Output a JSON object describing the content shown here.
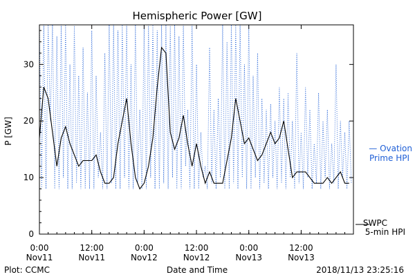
{
  "chart_data": {
    "type": "line",
    "title": "Hemispheric Power [GW]",
    "xlabel": "Date and Time",
    "ylabel": "P [GW]",
    "ylim": [
      0,
      37
    ],
    "yticks": [
      0,
      10,
      20,
      30
    ],
    "xlim": [
      "2018-11-11 00:00",
      "2018-11-13 23:59"
    ],
    "xticks": [
      {
        "time": "2018-11-11 00:00",
        "label_top": "0:00",
        "label_bottom": "Nov11"
      },
      {
        "time": "2018-11-11 12:00",
        "label_top": "12:00",
        "label_bottom": "Nov11"
      },
      {
        "time": "2018-11-12 00:00",
        "label_top": "0:00",
        "label_bottom": "Nov12"
      },
      {
        "time": "2018-11-12 12:00",
        "label_top": "12:00",
        "label_bottom": "Nov12"
      },
      {
        "time": "2018-11-13 00:00",
        "label_top": "0:00",
        "label_bottom": "Nov13"
      },
      {
        "time": "2018-11-13 12:00",
        "label_top": "12:00",
        "label_bottom": "Nov13"
      }
    ],
    "grid": false,
    "colors": {
      "swpc": "#000000",
      "ovation": "#1f5fd6"
    },
    "series": [
      {
        "name": "SWPC 5-min HPI",
        "legend_lines": [
          "SWPC",
          "5-min HPI"
        ],
        "style": "solid",
        "x": [
          "2018-11-11 00:00",
          "2018-11-11 01:00",
          "2018-11-11 02:00",
          "2018-11-11 03:00",
          "2018-11-11 04:00",
          "2018-11-11 05:00",
          "2018-11-11 06:00",
          "2018-11-11 07:00",
          "2018-11-11 08:00",
          "2018-11-11 09:00",
          "2018-11-11 10:00",
          "2018-11-11 11:00",
          "2018-11-11 12:00",
          "2018-11-11 13:00",
          "2018-11-11 14:00",
          "2018-11-11 15:00",
          "2018-11-11 16:00",
          "2018-11-11 17:00",
          "2018-11-11 18:00",
          "2018-11-11 19:00",
          "2018-11-11 20:00",
          "2018-11-11 21:00",
          "2018-11-11 22:00",
          "2018-11-11 23:00",
          "2018-11-12 00:00",
          "2018-11-12 01:00",
          "2018-11-12 02:00",
          "2018-11-12 03:00",
          "2018-11-12 04:00",
          "2018-11-12 05:00",
          "2018-11-12 06:00",
          "2018-11-12 07:00",
          "2018-11-12 08:00",
          "2018-11-12 09:00",
          "2018-11-12 10:00",
          "2018-11-12 11:00",
          "2018-11-12 12:00",
          "2018-11-12 13:00",
          "2018-11-12 14:00",
          "2018-11-12 15:00",
          "2018-11-12 16:00",
          "2018-11-12 17:00",
          "2018-11-12 18:00",
          "2018-11-12 19:00",
          "2018-11-12 20:00",
          "2018-11-12 21:00",
          "2018-11-12 22:00",
          "2018-11-12 23:00",
          "2018-11-13 00:00",
          "2018-11-13 01:00",
          "2018-11-13 02:00",
          "2018-11-13 03:00",
          "2018-11-13 04:00",
          "2018-11-13 05:00",
          "2018-11-13 06:00",
          "2018-11-13 07:00",
          "2018-11-13 08:00",
          "2018-11-13 09:00",
          "2018-11-13 10:00",
          "2018-11-13 11:00",
          "2018-11-13 12:00",
          "2018-11-13 13:00",
          "2018-11-13 14:00",
          "2018-11-13 15:00",
          "2018-11-13 16:00",
          "2018-11-13 17:00",
          "2018-11-13 18:00",
          "2018-11-13 19:00",
          "2018-11-13 20:00",
          "2018-11-13 21:00",
          "2018-11-13 22:00",
          "2018-11-13 23:00"
        ],
        "values": [
          17,
          26,
          24,
          18,
          12,
          17,
          19,
          16,
          14,
          12,
          13,
          13,
          13,
          14,
          11,
          9,
          9,
          10,
          16,
          20,
          24,
          16,
          10,
          8,
          9,
          12,
          17,
          26,
          33,
          32,
          18,
          15,
          17,
          21,
          16,
          12,
          16,
          12,
          9,
          11,
          9,
          9,
          9,
          13,
          17,
          24,
          20,
          16,
          17,
          15,
          13,
          14,
          16,
          18,
          16,
          17,
          20,
          15,
          10,
          11,
          11,
          11,
          10,
          9,
          9,
          9,
          10,
          9,
          10,
          11,
          9,
          9
        ]
      },
      {
        "name": "Ovation Prime HPI",
        "legend_lines": [
          "— Ovation",
          "Prime HPI"
        ],
        "style": "dotted",
        "x": [
          "2018-11-11 00:00",
          "2018-11-11 00:30",
          "2018-11-11 01:00",
          "2018-11-11 01:30",
          "2018-11-11 02:00",
          "2018-11-11 02:30",
          "2018-11-11 03:00",
          "2018-11-11 03:30",
          "2018-11-11 04:00",
          "2018-11-11 04:30",
          "2018-11-11 05:00",
          "2018-11-11 05:30",
          "2018-11-11 06:00",
          "2018-11-11 06:30",
          "2018-11-11 07:00",
          "2018-11-11 07:30",
          "2018-11-11 08:00",
          "2018-11-11 08:30",
          "2018-11-11 09:00",
          "2018-11-11 09:30",
          "2018-11-11 10:00",
          "2018-11-11 10:30",
          "2018-11-11 11:00",
          "2018-11-11 11:30",
          "2018-11-11 12:00",
          "2018-11-11 12:30",
          "2018-11-11 13:00",
          "2018-11-11 13:30",
          "2018-11-11 14:00",
          "2018-11-11 14:30",
          "2018-11-11 15:00",
          "2018-11-11 15:30",
          "2018-11-11 16:00",
          "2018-11-11 16:30",
          "2018-11-11 17:00",
          "2018-11-11 17:30",
          "2018-11-11 18:00",
          "2018-11-11 18:30",
          "2018-11-11 19:00",
          "2018-11-11 19:30",
          "2018-11-11 20:00",
          "2018-11-11 20:30",
          "2018-11-11 21:00",
          "2018-11-11 21:30",
          "2018-11-11 22:00",
          "2018-11-11 22:30",
          "2018-11-11 23:00",
          "2018-11-11 23:30",
          "2018-11-12 00:00",
          "2018-11-12 00:30",
          "2018-11-12 01:00",
          "2018-11-12 01:30",
          "2018-11-12 02:00",
          "2018-11-12 02:30",
          "2018-11-12 03:00",
          "2018-11-12 03:30",
          "2018-11-12 04:00",
          "2018-11-12 04:30",
          "2018-11-12 05:00",
          "2018-11-12 05:30",
          "2018-11-12 06:00",
          "2018-11-12 06:30",
          "2018-11-12 07:00",
          "2018-11-12 07:30",
          "2018-11-12 08:00",
          "2018-11-12 08:30",
          "2018-11-12 09:00",
          "2018-11-12 09:30",
          "2018-11-12 10:00",
          "2018-11-12 10:30",
          "2018-11-12 11:00",
          "2018-11-12 11:30",
          "2018-11-12 12:00",
          "2018-11-12 12:30",
          "2018-11-12 13:00",
          "2018-11-12 13:30",
          "2018-11-12 14:00",
          "2018-11-12 14:30",
          "2018-11-12 15:00",
          "2018-11-12 15:30",
          "2018-11-12 16:00",
          "2018-11-12 16:30",
          "2018-11-12 17:00",
          "2018-11-12 17:30",
          "2018-11-12 18:00",
          "2018-11-12 18:30",
          "2018-11-12 19:00",
          "2018-11-12 19:30",
          "2018-11-12 20:00",
          "2018-11-12 20:30",
          "2018-11-12 21:00",
          "2018-11-12 21:30",
          "2018-11-12 22:00",
          "2018-11-12 22:30",
          "2018-11-12 23:00",
          "2018-11-12 23:30",
          "2018-11-13 00:00",
          "2018-11-13 00:30",
          "2018-11-13 01:00",
          "2018-11-13 01:30",
          "2018-11-13 02:00",
          "2018-11-13 02:30",
          "2018-11-13 03:00",
          "2018-11-13 03:30",
          "2018-11-13 04:00",
          "2018-11-13 04:30",
          "2018-11-13 05:00",
          "2018-11-13 05:30",
          "2018-11-13 06:00",
          "2018-11-13 06:30",
          "2018-11-13 07:00",
          "2018-11-13 07:30",
          "2018-11-13 08:00",
          "2018-11-13 08:30",
          "2018-11-13 09:00",
          "2018-11-13 09:30",
          "2018-11-13 10:00",
          "2018-11-13 10:30",
          "2018-11-13 11:00",
          "2018-11-13 11:30",
          "2018-11-13 12:00",
          "2018-11-13 12:30",
          "2018-11-13 13:00",
          "2018-11-13 13:30",
          "2018-11-13 14:00",
          "2018-11-13 14:30",
          "2018-11-13 15:00",
          "2018-11-13 15:30",
          "2018-11-13 16:00",
          "2018-11-13 16:30",
          "2018-11-13 17:00",
          "2018-11-13 17:30",
          "2018-11-13 18:00",
          "2018-11-13 18:30",
          "2018-11-13 19:00",
          "2018-11-13 19:30",
          "2018-11-13 20:00",
          "2018-11-13 20:30",
          "2018-11-13 21:00",
          "2018-11-13 21:30",
          "2018-11-13 22:00",
          "2018-11-13 22:30",
          "2018-11-13 23:00",
          "2018-11-13 23:30"
        ],
        "values": [
          37,
          8,
          37,
          8,
          37,
          20,
          37,
          8,
          35,
          8,
          37,
          10,
          37,
          8,
          30,
          8,
          37,
          9,
          28,
          8,
          33,
          8,
          25,
          8,
          36,
          8,
          28,
          10,
          18,
          8,
          32,
          8,
          37,
          9,
          37,
          8,
          36,
          8,
          37,
          10,
          37,
          8,
          30,
          8,
          37,
          9,
          22,
          8,
          37,
          8,
          37,
          10,
          37,
          8,
          36,
          8,
          37,
          9,
          37,
          8,
          37,
          10,
          37,
          8,
          35,
          8,
          37,
          12,
          22,
          8,
          37,
          8,
          30,
          8,
          18,
          10,
          12,
          8,
          33,
          9,
          22,
          8,
          24,
          10,
          37,
          8,
          34,
          8,
          37,
          9,
          37,
          8,
          37,
          10,
          30,
          8,
          37,
          8,
          28,
          10,
          32,
          8,
          24,
          9,
          22,
          8,
          23,
          10,
          20,
          8,
          26,
          9,
          24,
          8,
          25,
          10,
          20,
          8,
          32,
          9,
          18,
          8,
          26,
          10,
          22,
          8,
          16,
          9,
          25,
          8,
          20,
          10,
          22,
          8,
          16,
          9,
          30,
          8,
          20,
          10,
          18,
          8,
          20,
          9
        ]
      }
    ]
  },
  "footer": {
    "left": "Plot: CCMC",
    "right": "2018/11/13 23:25:16"
  }
}
